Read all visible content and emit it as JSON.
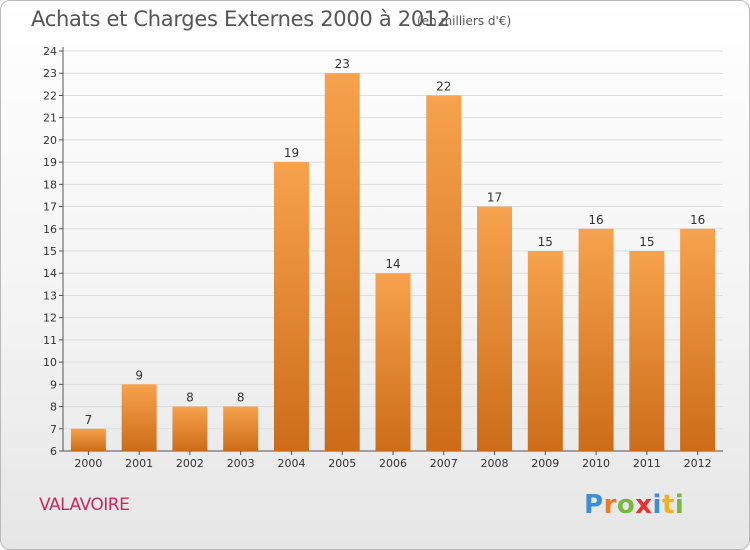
{
  "header": {
    "title": "Achats et Charges Externes 2000 à 2012",
    "unit": "(en milliers d'€)"
  },
  "footer": {
    "commune": "VALAVOIRE",
    "logo": [
      {
        "ch": "P",
        "color": "#3a8fd8"
      },
      {
        "ch": "r",
        "color": "#f07820"
      },
      {
        "ch": "o",
        "color": "#7ab83a"
      },
      {
        "ch": "x",
        "color": "#e83030"
      },
      {
        "ch": "i",
        "color": "#3a8fd8"
      },
      {
        "ch": "t",
        "color": "#f0b020"
      },
      {
        "ch": "i",
        "color": "#7ab83a"
      }
    ]
  },
  "colors": {
    "bar_top": "#f7a24e",
    "bar_bottom": "#cc6c18",
    "grid": "#dddddd"
  },
  "chart_data": {
    "type": "bar",
    "categories": [
      "2000",
      "2001",
      "2002",
      "2003",
      "2004",
      "2005",
      "2006",
      "2007",
      "2008",
      "2009",
      "2010",
      "2011",
      "2012"
    ],
    "values": [
      7,
      9,
      8,
      8,
      19,
      23,
      14,
      22,
      17,
      15,
      16,
      15,
      16
    ],
    "ylim": [
      6,
      24
    ],
    "yticks": [
      6,
      7,
      8,
      9,
      10,
      11,
      12,
      13,
      14,
      15,
      16,
      17,
      18,
      19,
      20,
      21,
      22,
      23,
      24
    ],
    "grid": true
  }
}
